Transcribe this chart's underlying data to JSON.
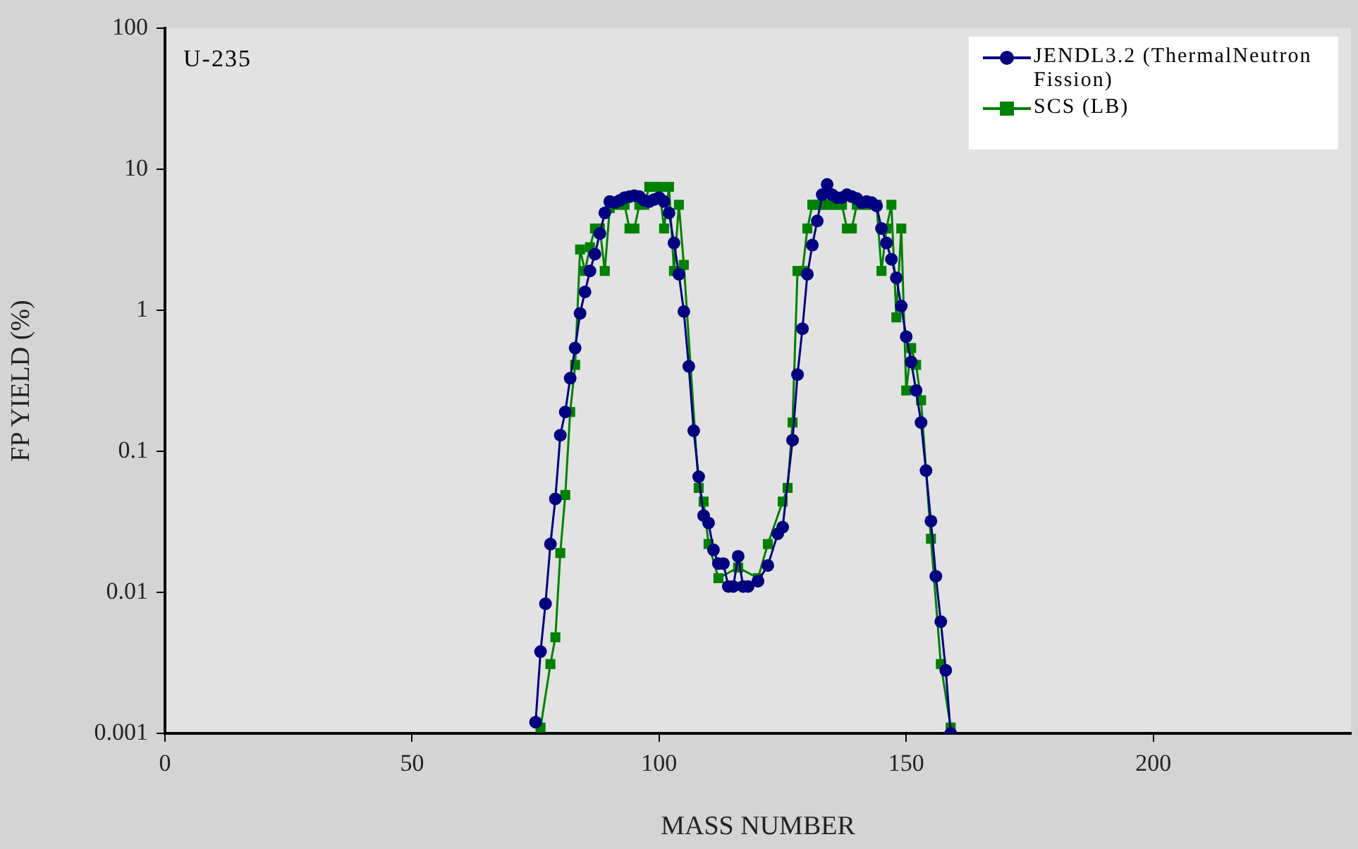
{
  "chart_data": {
    "type": "line",
    "xlabel": "MASS NUMBER",
    "ylabel": "FP YIELD (%)",
    "annotations": [
      "U-235"
    ],
    "log": "y",
    "xlim": [
      0,
      240
    ],
    "xticks": [
      0,
      50,
      100,
      150,
      200
    ],
    "ylim": [
      0.001,
      100
    ],
    "yticks": [
      0.001,
      0.01,
      0.1,
      1,
      10,
      100
    ],
    "grid": false,
    "legend": "top right",
    "series": [
      {
        "name": "JENDL3.2 (ThermalNeutron Fission)",
        "color": "#000080",
        "marker": "circle",
        "x": [
          75,
          76,
          77,
          78,
          79,
          80,
          81,
          82,
          83,
          84,
          85,
          86,
          87,
          88,
          89,
          90,
          91,
          92,
          93,
          94,
          95,
          96,
          97,
          98,
          99,
          100,
          101,
          102,
          103,
          104,
          105,
          106,
          107,
          108,
          109,
          110,
          111,
          112,
          113,
          114,
          115,
          116,
          117,
          118,
          120,
          122,
          124,
          125,
          127,
          128,
          129,
          130,
          131,
          132,
          133,
          134,
          135,
          136,
          137,
          138,
          139,
          140,
          141,
          142,
          143,
          144,
          145,
          146,
          147,
          148,
          149,
          150,
          151,
          152,
          153,
          154,
          155,
          156,
          157,
          158,
          159
        ],
        "values": [
          0.0012,
          0.0038,
          0.0083,
          0.022,
          0.046,
          0.13,
          0.19,
          0.33,
          0.54,
          0.95,
          1.35,
          1.9,
          2.5,
          3.5,
          4.9,
          5.9,
          5.8,
          6.0,
          6.3,
          6.4,
          6.5,
          6.4,
          6.0,
          5.9,
          6.1,
          6.3,
          5.9,
          4.9,
          3.0,
          1.8,
          0.98,
          0.4,
          0.14,
          0.066,
          0.035,
          0.031,
          0.02,
          0.016,
          0.016,
          0.011,
          0.011,
          0.018,
          0.011,
          0.011,
          0.012,
          0.0155,
          0.026,
          0.029,
          0.12,
          0.35,
          0.74,
          1.8,
          2.9,
          4.3,
          6.6,
          7.8,
          6.6,
          6.3,
          6.3,
          6.6,
          6.4,
          6.2,
          5.8,
          5.9,
          5.8,
          5.5,
          3.8,
          3.0,
          2.3,
          1.7,
          1.07,
          0.65,
          0.43,
          0.27,
          0.16,
          0.073,
          0.032,
          0.013,
          0.0062,
          0.0028,
          0.001
        ]
      },
      {
        "name": "SCS (LB)",
        "color": "#008000",
        "marker": "square",
        "x": [
          76,
          78,
          79,
          80,
          81,
          82,
          83,
          84,
          85,
          86,
          87,
          88,
          89,
          90,
          91,
          92,
          93,
          94,
          95,
          96,
          97,
          98,
          99,
          100,
          101,
          102,
          103,
          104,
          105,
          108,
          109,
          110,
          112,
          116,
          120,
          122,
          125,
          126,
          127,
          128,
          129,
          130,
          131,
          132,
          133,
          134,
          135,
          136,
          137,
          138,
          139,
          140,
          141,
          142,
          143,
          144,
          145,
          146,
          147,
          148,
          149,
          150,
          151,
          152,
          153,
          155,
          157,
          159
        ],
        "values": [
          0.0011,
          0.0031,
          0.0048,
          0.019,
          0.049,
          0.19,
          0.41,
          2.7,
          1.9,
          2.8,
          3.8,
          3.8,
          1.9,
          5.3,
          5.6,
          5.6,
          5.6,
          3.8,
          3.8,
          5.6,
          5.6,
          7.5,
          7.5,
          7.5,
          3.8,
          7.5,
          1.9,
          5.6,
          2.1,
          0.055,
          0.044,
          0.022,
          0.0126,
          0.015,
          0.0126,
          0.022,
          0.044,
          0.055,
          0.16,
          1.9,
          1.9,
          3.8,
          5.6,
          5.6,
          5.6,
          5.6,
          5.6,
          5.6,
          5.6,
          3.8,
          3.8,
          5.6,
          5.6,
          5.6,
          5.6,
          5.6,
          1.9,
          3.8,
          5.6,
          0.89,
          3.8,
          0.27,
          0.54,
          0.41,
          0.23,
          0.024,
          0.0031,
          0.0011
        ]
      }
    ]
  }
}
